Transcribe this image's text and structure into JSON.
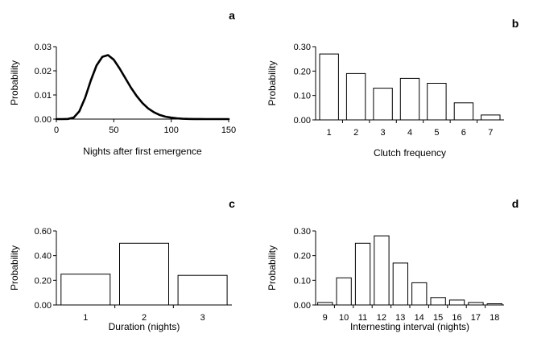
{
  "chart_data": [
    {
      "panel": "a",
      "type": "line",
      "xlabel": "Nights after first emergence",
      "ylabel": "Probability",
      "xlim": [
        0,
        150
      ],
      "ylim": [
        0,
        0.03
      ],
      "xticks": [
        0,
        50,
        100,
        150
      ],
      "xtick_labels": [
        "0",
        "50",
        "100",
        "150"
      ],
      "yticks": [
        0,
        0.01,
        0.02,
        0.03
      ],
      "ytick_labels": [
        "0.00",
        "0.01",
        "0.02",
        "0.03"
      ],
      "x": [
        0,
        5,
        10,
        15,
        20,
        25,
        30,
        35,
        40,
        45,
        50,
        55,
        60,
        65,
        70,
        75,
        80,
        85,
        90,
        95,
        100,
        105,
        110,
        115,
        120,
        125,
        130,
        135,
        140,
        145,
        150
      ],
      "y": [
        0,
        0,
        5e-05,
        0.0006,
        0.0032,
        0.0088,
        0.016,
        0.0222,
        0.0258,
        0.0265,
        0.0246,
        0.021,
        0.017,
        0.013,
        0.0095,
        0.0066,
        0.0044,
        0.0028,
        0.0017,
        0.001,
        0.0006,
        0.0003,
        0.00015,
        8e-05,
        4e-05,
        2e-05,
        1e-05,
        0,
        0,
        0,
        0
      ]
    },
    {
      "panel": "b",
      "type": "bar",
      "xlabel": "Clutch frequency",
      "ylabel": "Probability",
      "ylim": [
        0,
        0.3
      ],
      "yticks": [
        0,
        0.1,
        0.2,
        0.3
      ],
      "ytick_labels": [
        "0.00",
        "0.10",
        "0.20",
        "0.30"
      ],
      "categories": [
        "1",
        "2",
        "3",
        "4",
        "5",
        "6",
        "7"
      ],
      "values": [
        0.27,
        0.19,
        0.13,
        0.17,
        0.15,
        0.07,
        0.02
      ]
    },
    {
      "panel": "c",
      "type": "bar",
      "xlabel": "Duration (nights)",
      "ylabel": "Probability",
      "ylim": [
        0,
        0.6
      ],
      "yticks": [
        0,
        0.2,
        0.4,
        0.6
      ],
      "ytick_labels": [
        "0.00",
        "0.20",
        "0.40",
        "0.60"
      ],
      "categories": [
        "1",
        "2",
        "3"
      ],
      "values": [
        0.25,
        0.5,
        0.24
      ]
    },
    {
      "panel": "d",
      "type": "bar",
      "xlabel": "Internesting interval (nights)",
      "ylabel": "Probability",
      "ylim": [
        0,
        0.3
      ],
      "yticks": [
        0,
        0.1,
        0.2,
        0.3
      ],
      "ytick_labels": [
        "0.00",
        "0.10",
        "0.20",
        "0.30"
      ],
      "categories": [
        "9",
        "10",
        "11",
        "12",
        "13",
        "14",
        "15",
        "16",
        "17",
        "18"
      ],
      "values": [
        0.01,
        0.11,
        0.25,
        0.28,
        0.17,
        0.09,
        0.03,
        0.02,
        0.01,
        0.005
      ]
    }
  ]
}
